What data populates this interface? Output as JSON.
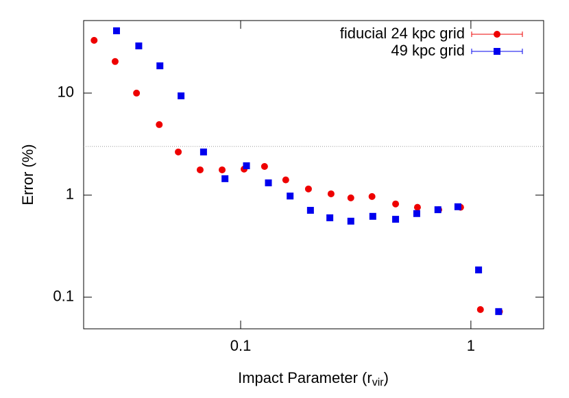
{
  "chart_data": {
    "type": "scatter",
    "ylabel": "Error (%)",
    "xlabel": {
      "text": "Impact Parameter (r",
      "sub": "vir",
      "end": ")"
    },
    "xlog": true,
    "ylog": true,
    "xlim": [
      0.0208,
      2.07
    ],
    "ylim": [
      0.049,
      51.4
    ],
    "xticks": [
      0.1,
      1
    ],
    "yticks": [
      0.1,
      1,
      10
    ],
    "hline": 3,
    "hline_color": "#999999",
    "legend": "top-right",
    "series": [
      {
        "name": "fiducial 24 kpc grid",
        "color": "#ee0000",
        "marker": "circle",
        "x": [
          0.0231,
          0.0285,
          0.0353,
          0.0443,
          0.0536,
          0.0667,
          0.0831,
          0.1035,
          0.127,
          0.157,
          0.197,
          0.247,
          0.301,
          0.372,
          0.471,
          0.586,
          0.725,
          0.902,
          1.1,
          1.33
        ],
        "values": [
          32.9,
          20.4,
          10,
          4.91,
          2.65,
          1.77,
          1.77,
          1.8,
          1.91,
          1.41,
          1.15,
          1.03,
          0.94,
          0.97,
          0.82,
          0.76,
          0.72,
          0.76,
          0.0757,
          0.0723
        ]
      },
      {
        "name": "49 kpc grid",
        "color": "#0000ee",
        "marker": "square",
        "x": [
          0.0289,
          0.0361,
          0.0446,
          0.0551,
          0.069,
          0.0855,
          0.106,
          0.132,
          0.164,
          0.201,
          0.244,
          0.301,
          0.375,
          0.471,
          0.582,
          0.719,
          0.878,
          1.08,
          1.32
        ],
        "values": [
          40.8,
          29.0,
          18.5,
          9.4,
          2.65,
          1.45,
          1.94,
          1.32,
          0.98,
          0.71,
          0.6,
          0.556,
          0.62,
          0.58,
          0.66,
          0.72,
          0.77,
          0.185,
          0.0723
        ]
      }
    ]
  }
}
